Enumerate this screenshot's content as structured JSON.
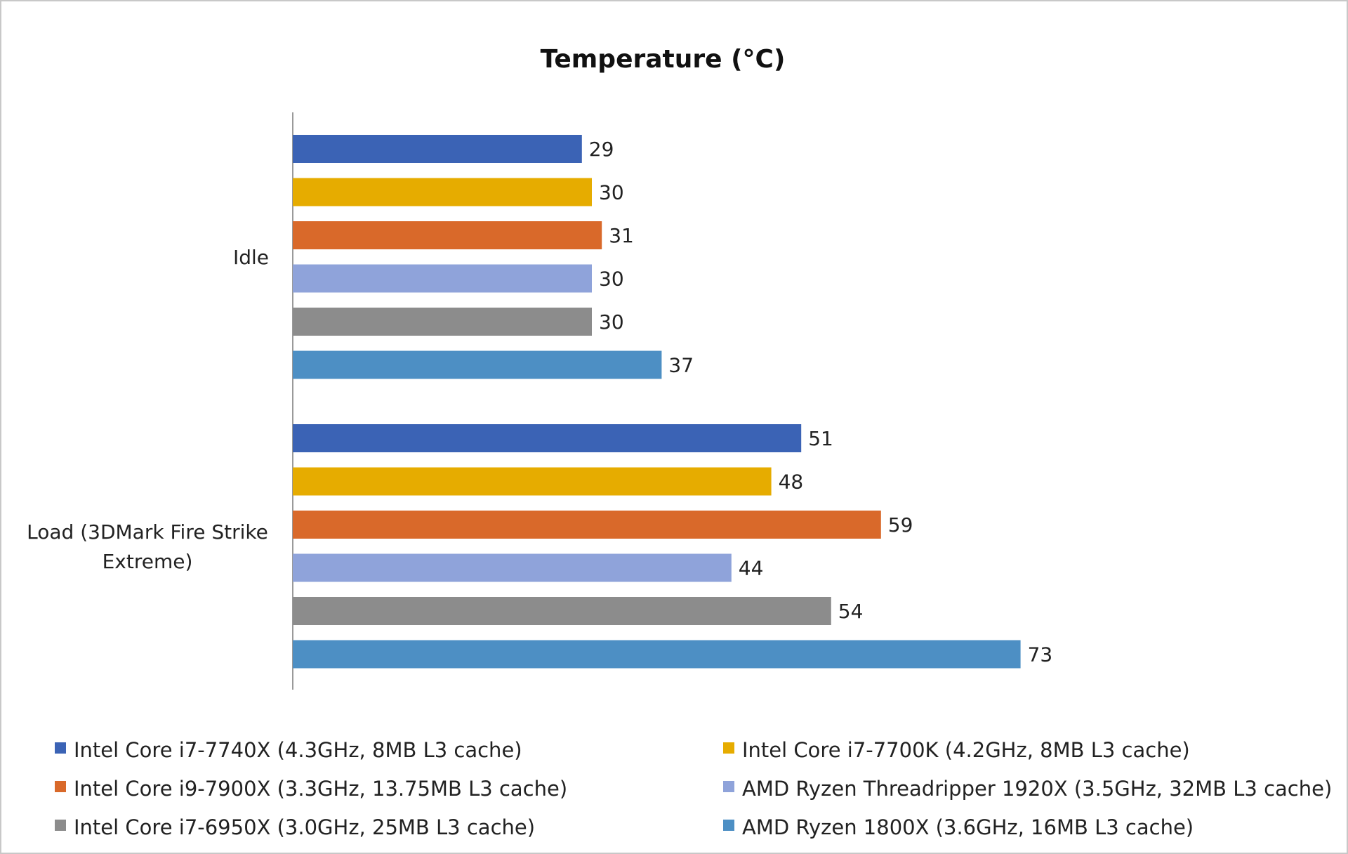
{
  "chart_data": {
    "type": "bar",
    "orientation": "horizontal",
    "title": "Temperature (°C)",
    "xlabel": "",
    "ylabel": "",
    "xlim": [
      0,
      75
    ],
    "grid": false,
    "legend_position": "bottom",
    "categories": [
      "Idle",
      "Load (3DMark Fire Strike Extreme)"
    ],
    "category_lines": [
      [
        "Idle"
      ],
      [
        "Load (3DMark Fire Strike",
        "Extreme)"
      ]
    ],
    "series": [
      {
        "name": "Intel Core i7-7740X (4.3GHz, 8MB L3 cache)",
        "color": "#3b63b5",
        "values": [
          29,
          51
        ]
      },
      {
        "name": "Intel Core i7-7700K (4.2GHz, 8MB L3 cache)",
        "color": "#e6ac00",
        "values": [
          30,
          48
        ]
      },
      {
        "name": "Intel Core i9-7900X (3.3GHz, 13.75MB L3 cache)",
        "color": "#d9692a",
        "values": [
          31,
          59
        ]
      },
      {
        "name": "AMD Ryzen Threadripper 1920X (3.5GHz, 32MB L3 cache)",
        "color": "#8fa3da",
        "values": [
          30,
          44
        ]
      },
      {
        "name": "Intel Core i7-6950X (3.0GHz, 25MB L3 cache)",
        "color": "#8c8c8c",
        "values": [
          30,
          54
        ]
      },
      {
        "name": "AMD Ryzen 1800X (3.6GHz, 16MB L3 cache)",
        "color": "#4d8fc4",
        "values": [
          37,
          73
        ]
      }
    ]
  }
}
